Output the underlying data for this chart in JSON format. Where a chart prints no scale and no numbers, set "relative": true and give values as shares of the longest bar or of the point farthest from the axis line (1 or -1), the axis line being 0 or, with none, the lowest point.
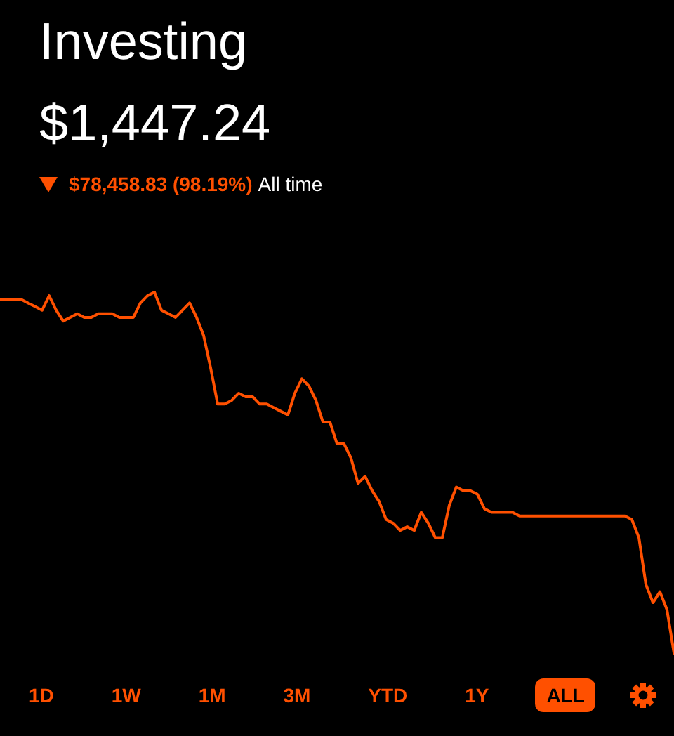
{
  "chart_data": {
    "type": "line",
    "title": "Investing",
    "subtitle": "$1,447.24",
    "annotations": [
      "$78,458.83 (98.19%)",
      "All time",
      "1D",
      "1W",
      "1M",
      "3M",
      "YTD",
      "1Y",
      "ALL"
    ],
    "categories": [
      null,
      null,
      null,
      null,
      null,
      null,
      null,
      null,
      null,
      null,
      null,
      null,
      null,
      null,
      null,
      null,
      null,
      null,
      null,
      null,
      null,
      null,
      null,
      null,
      null,
      null,
      null,
      null,
      null,
      null,
      null,
      null,
      null,
      null,
      null,
      null,
      null,
      null,
      null,
      null,
      null,
      null,
      null,
      null,
      null,
      null,
      null,
      null,
      null,
      null,
      null,
      null,
      null,
      null,
      null,
      null,
      null,
      null,
      null,
      null,
      null,
      null,
      null,
      null,
      null,
      null,
      null,
      null,
      null,
      null,
      null,
      null,
      null,
      null,
      null,
      null,
      null,
      null,
      null,
      null,
      null,
      null,
      null,
      null,
      null,
      null,
      null,
      null,
      null,
      null,
      null,
      null,
      null,
      null,
      null,
      null,
      null
    ],
    "relative": true,
    "series": [
      {
        "color": "#ff5000",
        "values": [
          0.98,
          0.98,
          0.98,
          0.98,
          0.97,
          0.96,
          0.95,
          0.99,
          0.95,
          0.92,
          0.93,
          0.94,
          0.93,
          0.93,
          0.94,
          0.94,
          0.94,
          0.93,
          0.93,
          0.93,
          0.97,
          0.99,
          1,
          0.95,
          0.94,
          0.93,
          0.95,
          0.97,
          0.93,
          0.88,
          0.79,
          0.69,
          0.69,
          0.7,
          0.72,
          0.71,
          0.71,
          0.69,
          0.69,
          0.68,
          0.67,
          0.66,
          0.72,
          0.76,
          0.74,
          0.7,
          0.64,
          0.64,
          0.58,
          0.58,
          0.54,
          0.47,
          0.49,
          0.45,
          0.42,
          0.37,
          0.36,
          0.34,
          0.35,
          0.34,
          0.39,
          0.36,
          0.32,
          0.32,
          0.41,
          0.46,
          0.45,
          0.45,
          0.44,
          0.4,
          0.39,
          0.39,
          0.39,
          0.39,
          0.38,
          0.38,
          0.38,
          0.38,
          0.38,
          0.38,
          0.38,
          0.38,
          0.38,
          0.38,
          0.38,
          0.38,
          0.38,
          0.38,
          0.38,
          0.38,
          0.37,
          0.32,
          0.19,
          0.14,
          0.17,
          0.12,
          0
        ]
      }
    ],
    "marker": "none",
    "line_style": "solid",
    "grid": false,
    "tick_labels": false
  }
}
